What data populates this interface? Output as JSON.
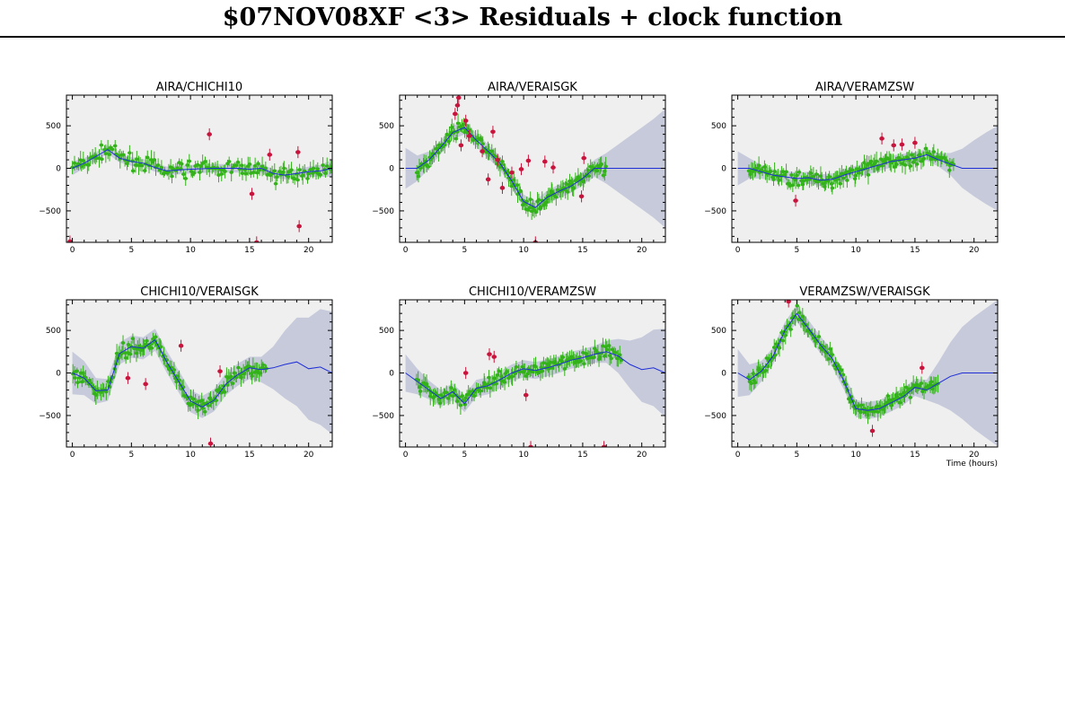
{
  "page": {
    "title": "$07NOV08XF <3> Residuals + clock function"
  },
  "colors": {
    "panel_bg": "#efefef",
    "good_points": "#33b219",
    "flagged_points": "#c8143c",
    "clock_line": "#1f2fd6",
    "uncertainty_band": "#c6cadb"
  },
  "chart_data": [
    {
      "type": "scatter",
      "title": "AIRA/CHICHI10",
      "xlabel": "",
      "ylabel": "",
      "xlim": [
        -0.5,
        22
      ],
      "ylim": [
        -870,
        860
      ],
      "xticks": [
        0,
        5,
        10,
        15,
        20
      ],
      "yticks": [
        -500,
        0,
        500
      ],
      "grid": false,
      "clock": {
        "x": [
          0,
          1,
          2,
          3,
          4,
          5,
          6,
          7,
          8,
          9,
          10,
          11,
          12,
          13,
          14,
          15,
          16,
          17,
          18,
          19,
          20,
          21,
          22
        ],
        "y": [
          0,
          60,
          140,
          220,
          120,
          80,
          60,
          10,
          -30,
          -20,
          -10,
          -5,
          0,
          0,
          0,
          -10,
          0,
          -60,
          -80,
          -60,
          -40,
          -30,
          0
        ],
        "band": [
          80,
          60,
          50,
          50,
          50,
          50,
          50,
          50,
          50,
          50,
          50,
          50,
          50,
          50,
          50,
          50,
          50,
          50,
          50,
          50,
          60,
          70,
          100
        ]
      },
      "flagged_points": [
        [
          -0.2,
          -860
        ],
        [
          11.6,
          400
        ],
        [
          15.2,
          -300
        ],
        [
          15.6,
          -870
        ],
        [
          16.7,
          160
        ],
        [
          19.1,
          190
        ],
        [
          19.2,
          -680
        ]
      ]
    },
    {
      "type": "scatter",
      "title": "AIRA/VERAISGK",
      "xlabel": "",
      "ylabel": "",
      "xlim": [
        -0.5,
        22
      ],
      "ylim": [
        -870,
        860
      ],
      "xticks": [
        0,
        5,
        10,
        15,
        20
      ],
      "yticks": [
        -500,
        0,
        500
      ],
      "grid": false,
      "clock": {
        "x": [
          0,
          1,
          2,
          3,
          4,
          5,
          6,
          7,
          8,
          9,
          10,
          11,
          12,
          13,
          14,
          15,
          16,
          17,
          18,
          19,
          20,
          21,
          22
        ],
        "y": [
          0,
          0,
          100,
          250,
          420,
          480,
          330,
          200,
          60,
          -150,
          -390,
          -460,
          -340,
          -270,
          -210,
          -120,
          0,
          0,
          0,
          0,
          0,
          0,
          0
        ],
        "band": [
          240,
          150,
          100,
          80,
          80,
          80,
          80,
          80,
          80,
          80,
          80,
          80,
          80,
          80,
          80,
          80,
          100,
          180,
          280,
          380,
          480,
          580,
          700
        ]
      },
      "flagged_points": [
        [
          4.2,
          640
        ],
        [
          4.4,
          740
        ],
        [
          4.5,
          830
        ],
        [
          4.7,
          270
        ],
        [
          5.1,
          560
        ],
        [
          5.4,
          380
        ],
        [
          6.5,
          200
        ],
        [
          7.0,
          -130
        ],
        [
          7.4,
          430
        ],
        [
          7.8,
          100
        ],
        [
          8.2,
          -230
        ],
        [
          9.0,
          -50
        ],
        [
          9.8,
          -10
        ],
        [
          10.4,
          90
        ],
        [
          11.0,
          -870
        ],
        [
          11.8,
          80
        ],
        [
          12.5,
          10
        ],
        [
          14.9,
          -330
        ],
        [
          15.1,
          120
        ]
      ]
    },
    {
      "type": "scatter",
      "title": "AIRA/VERAMZSW",
      "xlabel": "",
      "ylabel": "",
      "xlim": [
        -0.5,
        22
      ],
      "ylim": [
        -870,
        860
      ],
      "xticks": [
        0,
        5,
        10,
        15,
        20
      ],
      "yticks": [
        -500,
        0,
        500
      ],
      "grid": false,
      "clock": {
        "x": [
          0,
          1,
          2,
          3,
          4,
          5,
          6,
          7,
          8,
          9,
          10,
          11,
          12,
          13,
          14,
          15,
          16,
          17,
          18,
          19,
          20,
          21,
          22
        ],
        "y": [
          0,
          0,
          -40,
          -80,
          -100,
          -120,
          -110,
          -140,
          -130,
          -80,
          -40,
          0,
          40,
          80,
          100,
          120,
          160,
          100,
          50,
          0,
          0,
          0,
          0
        ],
        "band": [
          200,
          120,
          80,
          70,
          70,
          70,
          70,
          70,
          70,
          70,
          70,
          70,
          70,
          70,
          70,
          70,
          70,
          80,
          130,
          230,
          330,
          420,
          500
        ]
      },
      "flagged_points": [
        [
          4.9,
          -380
        ],
        [
          12.2,
          350
        ],
        [
          13.2,
          270
        ],
        [
          13.9,
          280
        ],
        [
          15.0,
          300
        ]
      ]
    },
    {
      "type": "scatter",
      "title": "CHICHI10/VERAISGK",
      "xlabel": "",
      "ylabel": "",
      "xlim": [
        -0.5,
        22
      ],
      "ylim": [
        -870,
        860
      ],
      "xticks": [
        0,
        5,
        10,
        15,
        20
      ],
      "yticks": [
        -500,
        0,
        500
      ],
      "grid": false,
      "clock": {
        "x": [
          0,
          1,
          2,
          3,
          4,
          5,
          6,
          7,
          8,
          9,
          10,
          11,
          12,
          13,
          14,
          15,
          16,
          17,
          18,
          19,
          20,
          21,
          22
        ],
        "y": [
          0,
          -60,
          -210,
          -200,
          230,
          310,
          290,
          390,
          130,
          -100,
          -330,
          -400,
          -320,
          -130,
          -20,
          60,
          40,
          60,
          100,
          130,
          50,
          70,
          0
        ],
        "band": [
          250,
          200,
          150,
          130,
          130,
          130,
          130,
          130,
          130,
          130,
          130,
          130,
          130,
          130,
          130,
          130,
          150,
          250,
          400,
          520,
          600,
          680,
          720
        ]
      },
      "flagged_points": [
        [
          4.7,
          -60
        ],
        [
          6.2,
          -130
        ],
        [
          9.2,
          320
        ],
        [
          11.7,
          -830
        ],
        [
          12.5,
          20
        ]
      ]
    },
    {
      "type": "scatter",
      "title": "CHICHI10/VERAMZSW",
      "xlabel": "",
      "ylabel": "",
      "xlim": [
        -0.5,
        22
      ],
      "ylim": [
        -870,
        860
      ],
      "xticks": [
        0,
        5,
        10,
        15,
        20
      ],
      "yticks": [
        -500,
        0,
        500
      ],
      "grid": false,
      "clock": {
        "x": [
          0,
          1,
          2,
          3,
          4,
          5,
          6,
          7,
          8,
          9,
          10,
          11,
          12,
          13,
          14,
          15,
          16,
          17,
          18,
          19,
          20,
          21,
          22
        ],
        "y": [
          0,
          -100,
          -200,
          -300,
          -220,
          -360,
          -180,
          -150,
          -80,
          0,
          50,
          30,
          60,
          100,
          150,
          180,
          220,
          250,
          200,
          100,
          40,
          60,
          0
        ],
        "band": [
          220,
          150,
          110,
          100,
          100,
          100,
          100,
          100,
          100,
          100,
          100,
          100,
          100,
          100,
          100,
          100,
          100,
          130,
          200,
          280,
          380,
          450,
          520
        ]
      },
      "flagged_points": [
        [
          5.1,
          0
        ],
        [
          7.1,
          220
        ],
        [
          7.5,
          190
        ],
        [
          10.2,
          -260
        ],
        [
          10.6,
          -870
        ],
        [
          16.8,
          -870
        ]
      ]
    },
    {
      "type": "scatter",
      "title": "VERAMZSW/VERAISGK",
      "xlabel": "Time (hours)",
      "ylabel": "",
      "xlim": [
        -0.5,
        22
      ],
      "ylim": [
        -870,
        860
      ],
      "xticks": [
        0,
        5,
        10,
        15,
        20
      ],
      "yticks": [
        -500,
        0,
        500
      ],
      "grid": false,
      "clock": {
        "x": [
          0,
          1,
          2,
          3,
          4,
          5,
          6,
          7,
          8,
          9,
          10,
          11,
          12,
          13,
          14,
          15,
          16,
          17,
          18,
          19,
          20,
          21,
          22
        ],
        "y": [
          0,
          -80,
          20,
          200,
          500,
          700,
          520,
          330,
          170,
          -100,
          -420,
          -440,
          -420,
          -350,
          -280,
          -170,
          -200,
          -120,
          -40,
          0,
          0,
          0,
          0
        ],
        "band": [
          280,
          180,
          120,
          100,
          100,
          100,
          100,
          100,
          100,
          100,
          100,
          100,
          100,
          100,
          100,
          100,
          120,
          250,
          400,
          540,
          660,
          760,
          860
        ]
      },
      "flagged_points": [
        [
          4.3,
          840
        ],
        [
          11.4,
          -680
        ],
        [
          15.6,
          60
        ]
      ]
    }
  ]
}
